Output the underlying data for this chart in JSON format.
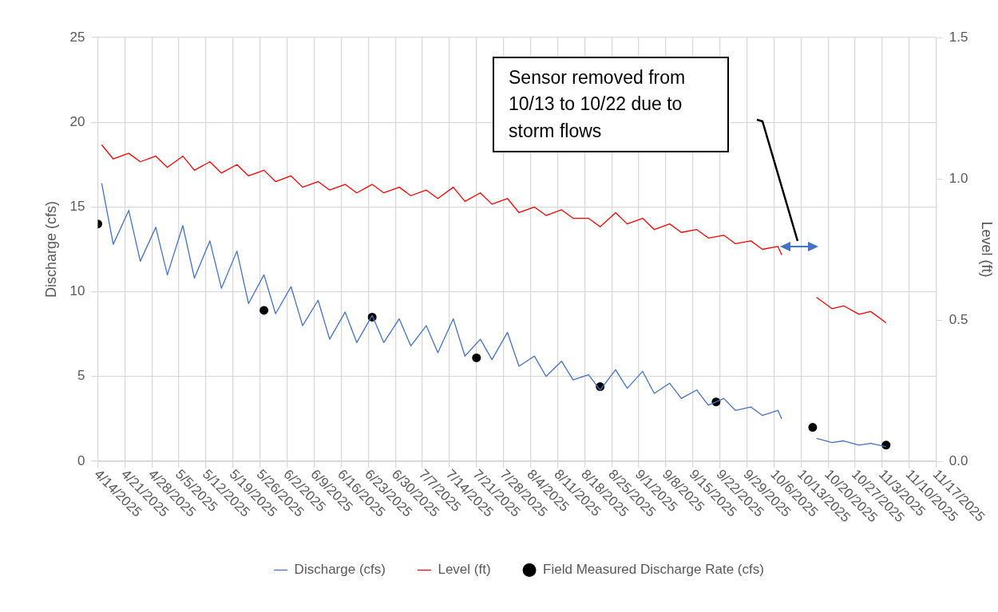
{
  "chart_data": {
    "type": "line",
    "ylabel": "Discharge (cfs)",
    "y2label": "Level (ft)",
    "annotations": [
      "Sensor removed from 10/13 to 10/22 due to storm flows"
    ],
    "xlim": [
      "2025-04-14",
      "2025-11-17"
    ],
    "xticks": [
      {
        "value": "2025-04-14",
        "label": "4/14/2025"
      },
      {
        "value": "2025-04-21",
        "label": "4/21/2025"
      },
      {
        "value": "2025-04-28",
        "label": "4/28/2025"
      },
      {
        "value": "2025-05-05",
        "label": "5/5/2025"
      },
      {
        "value": "2025-05-12",
        "label": "5/12/2025"
      },
      {
        "value": "2025-05-19",
        "label": "5/19/2025"
      },
      {
        "value": "2025-05-26",
        "label": "5/26/2025"
      },
      {
        "value": "2025-06-02",
        "label": "6/2/2025"
      },
      {
        "value": "2025-06-09",
        "label": "6/9/2025"
      },
      {
        "value": "2025-06-16",
        "label": "6/16/2025"
      },
      {
        "value": "2025-06-23",
        "label": "6/23/2025"
      },
      {
        "value": "2025-06-30",
        "label": "6/30/2025"
      },
      {
        "value": "2025-07-07",
        "label": "7/7/2025"
      },
      {
        "value": "2025-07-14",
        "label": "7/14/2025"
      },
      {
        "value": "2025-07-21",
        "label": "7/21/2025"
      },
      {
        "value": "2025-07-28",
        "label": "7/28/2025"
      },
      {
        "value": "2025-08-04",
        "label": "8/4/2025"
      },
      {
        "value": "2025-08-11",
        "label": "8/11/2025"
      },
      {
        "value": "2025-08-18",
        "label": "8/18/2025"
      },
      {
        "value": "2025-08-25",
        "label": "8/25/2025"
      },
      {
        "value": "2025-09-01",
        "label": "9/1/2025"
      },
      {
        "value": "2025-09-08",
        "label": "9/8/2025"
      },
      {
        "value": "2025-09-15",
        "label": "9/15/2025"
      },
      {
        "value": "2025-09-22",
        "label": "9/22/2025"
      },
      {
        "value": "2025-09-29",
        "label": "9/29/2025"
      },
      {
        "value": "2025-10-06",
        "label": "10/6/2025"
      },
      {
        "value": "2025-10-13",
        "label": "10/13/2025"
      },
      {
        "value": "2025-10-20",
        "label": "10/20/2025"
      },
      {
        "value": "2025-10-27",
        "label": "10/27/2025"
      },
      {
        "value": "2025-11-03",
        "label": "11/3/2025"
      },
      {
        "value": "2025-11-10",
        "label": "11/10/2025"
      },
      {
        "value": "2025-11-17",
        "label": "11/17/2025"
      }
    ],
    "ylim": [
      0,
      25
    ],
    "yticks": [
      0,
      5,
      10,
      15,
      20,
      25
    ],
    "y2lim": [
      0,
      1.5
    ],
    "y2ticks": [
      {
        "value": 0,
        "label": "0.0"
      },
      {
        "value": 0.5,
        "label": "0.5"
      },
      {
        "value": 1,
        "label": "1.0"
      },
      1.5
    ],
    "grid": true,
    "legend": "bottom",
    "line_style": "solid",
    "series": [
      {
        "name": "Field Measured Discharge Rate (cfs)",
        "type": "scatter",
        "marker": "circle",
        "color": "#000000",
        "x": [
          "2025-04-14",
          "2025-05-27",
          "2025-06-24",
          "2025-07-21",
          "2025-08-22",
          "2025-09-21",
          "2025-10-16",
          "2025-11-04"
        ],
        "values": [
          14.0,
          8.9,
          8.5,
          6.1,
          4.4,
          3.5,
          2.0,
          0.95
        ]
      },
      {
        "name": "Discharge (cfs)",
        "type": "line",
        "marker": "none",
        "color": "#4472c4",
        "x": [
          "2025-04-15",
          "2025-04-18",
          "2025-04-22",
          "2025-04-25",
          "2025-04-29",
          "2025-05-02",
          "2025-05-06",
          "2025-05-09",
          "2025-05-13",
          "2025-05-16",
          "2025-05-20",
          "2025-05-23",
          "2025-05-27",
          "2025-05-30",
          "2025-06-03",
          "2025-06-06",
          "2025-06-10",
          "2025-06-13",
          "2025-06-17",
          "2025-06-20",
          "2025-06-24",
          "2025-06-27",
          "2025-07-01",
          "2025-07-04",
          "2025-07-08",
          "2025-07-11",
          "2025-07-15",
          "2025-07-18",
          "2025-07-22",
          "2025-07-25",
          "2025-07-29",
          "2025-08-01",
          "2025-08-05",
          "2025-08-08",
          "2025-08-12",
          "2025-08-15",
          "2025-08-19",
          "2025-08-22",
          "2025-08-26",
          "2025-08-29",
          "2025-09-02",
          "2025-09-05",
          "2025-09-09",
          "2025-09-12",
          "2025-09-16",
          "2025-09-19",
          "2025-09-23",
          "2025-09-26",
          "2025-09-30",
          "2025-10-03",
          "2025-10-07",
          "2025-10-08",
          "2025-10-13",
          "2025-10-17",
          "2025-10-21",
          "2025-10-24",
          "2025-10-28",
          "2025-10-31",
          "2025-11-04"
        ],
        "values": [
          16.4,
          12.8,
          14.8,
          11.8,
          13.8,
          11.0,
          13.9,
          10.8,
          13.0,
          10.2,
          12.4,
          9.3,
          11.0,
          8.7,
          10.3,
          8.0,
          9.5,
          7.2,
          8.8,
          7.0,
          8.6,
          7.0,
          8.4,
          6.8,
          8.0,
          6.4,
          8.4,
          6.2,
          7.2,
          6.0,
          7.6,
          5.6,
          6.2,
          5.0,
          5.9,
          4.8,
          5.1,
          4.2,
          5.4,
          4.3,
          5.3,
          4.0,
          4.6,
          3.7,
          4.2,
          3.3,
          3.7,
          3.0,
          3.2,
          2.7,
          3.0,
          2.5,
          null,
          1.35,
          1.1,
          1.2,
          0.95,
          1.05,
          0.85
        ]
      },
      {
        "name": "Level (ft)",
        "type": "line",
        "marker": "none",
        "axis": "y2",
        "color": "#ff0000",
        "x": [
          "2025-04-15",
          "2025-04-18",
          "2025-04-22",
          "2025-04-25",
          "2025-04-29",
          "2025-05-02",
          "2025-05-06",
          "2025-05-09",
          "2025-05-13",
          "2025-05-16",
          "2025-05-20",
          "2025-05-23",
          "2025-05-27",
          "2025-05-30",
          "2025-06-03",
          "2025-06-06",
          "2025-06-10",
          "2025-06-13",
          "2025-06-17",
          "2025-06-20",
          "2025-06-24",
          "2025-06-27",
          "2025-07-01",
          "2025-07-04",
          "2025-07-08",
          "2025-07-11",
          "2025-07-15",
          "2025-07-18",
          "2025-07-22",
          "2025-07-25",
          "2025-07-29",
          "2025-08-01",
          "2025-08-05",
          "2025-08-08",
          "2025-08-12",
          "2025-08-15",
          "2025-08-19",
          "2025-08-22",
          "2025-08-26",
          "2025-08-29",
          "2025-09-02",
          "2025-09-05",
          "2025-09-09",
          "2025-09-12",
          "2025-09-16",
          "2025-09-19",
          "2025-09-23",
          "2025-09-26",
          "2025-09-30",
          "2025-10-03",
          "2025-10-07",
          "2025-10-08",
          "2025-10-13",
          "2025-10-17",
          "2025-10-21",
          "2025-10-24",
          "2025-10-28",
          "2025-10-31",
          "2025-11-04"
        ],
        "values": [
          1.12,
          1.07,
          1.09,
          1.06,
          1.08,
          1.04,
          1.08,
          1.03,
          1.06,
          1.02,
          1.05,
          1.01,
          1.03,
          0.99,
          1.01,
          0.97,
          0.99,
          0.96,
          0.98,
          0.95,
          0.98,
          0.95,
          0.97,
          0.94,
          0.96,
          0.93,
          0.97,
          0.92,
          0.95,
          0.91,
          0.93,
          0.88,
          0.9,
          0.87,
          0.89,
          0.86,
          0.86,
          0.83,
          0.88,
          0.84,
          0.86,
          0.82,
          0.84,
          0.81,
          0.82,
          0.79,
          0.8,
          0.77,
          0.78,
          0.75,
          0.76,
          0.73,
          null,
          0.58,
          0.54,
          0.55,
          0.52,
          0.53,
          0.49
        ]
      }
    ]
  }
}
